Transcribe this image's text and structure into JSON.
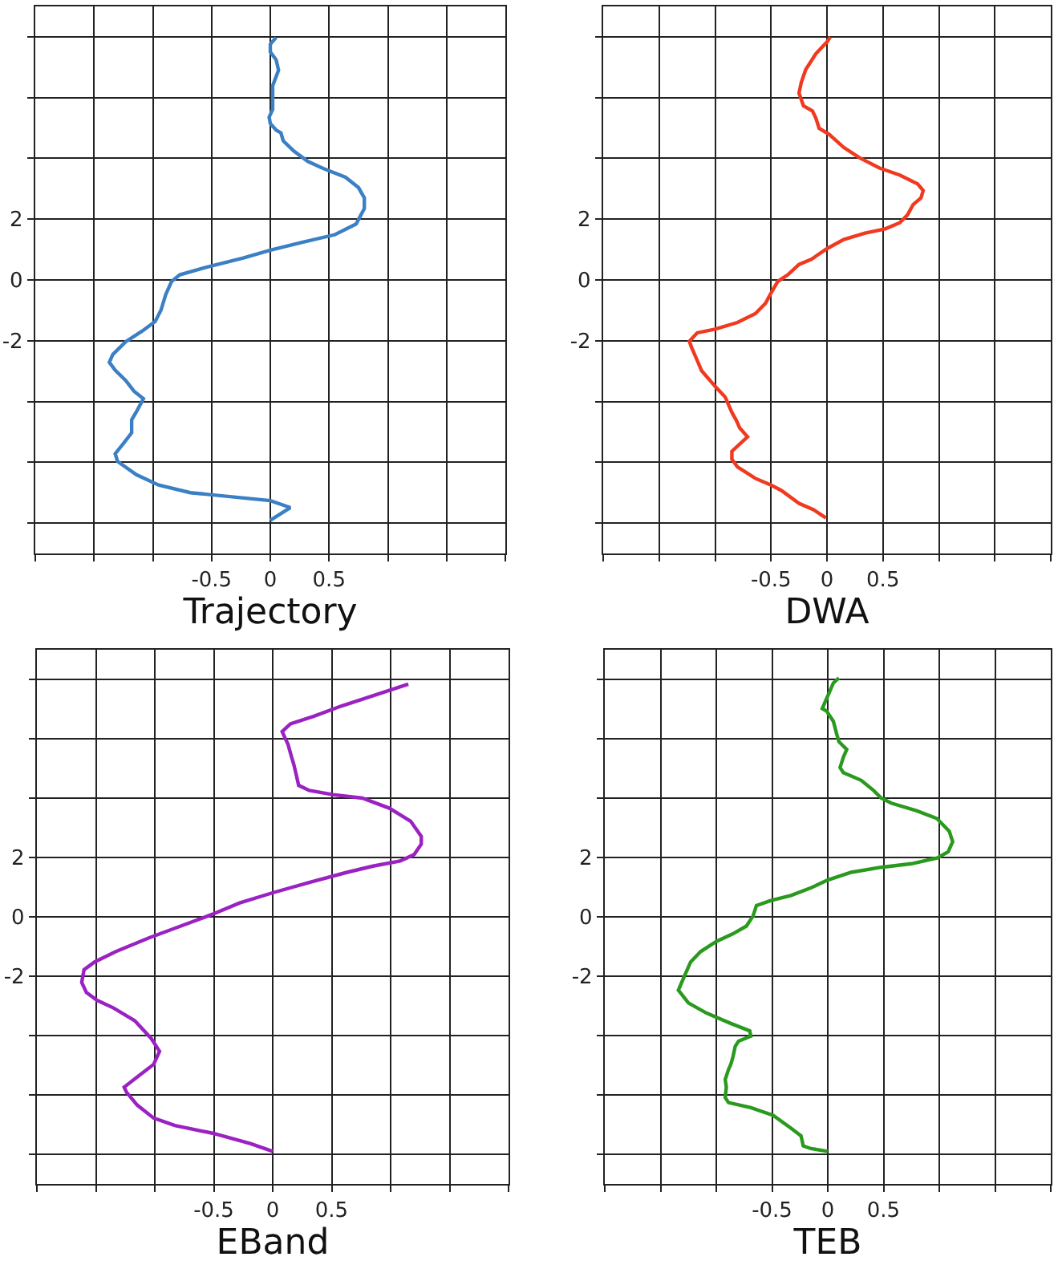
{
  "chart_data": [
    {
      "type": "line",
      "xlabel": "Trajectory",
      "xlim": [
        -2,
        2
      ],
      "ylim": [
        -9,
        9
      ],
      "grid": true,
      "marker": "none",
      "line_style": "solid",
      "xticks": [
        {
          "value": -2,
          "label": null
        },
        {
          "value": -1.5,
          "label": null
        },
        {
          "value": -1,
          "label": null
        },
        -0.5,
        0,
        0.5,
        {
          "value": 1,
          "label": null
        },
        {
          "value": 1.5,
          "label": null
        },
        {
          "value": 2,
          "label": null
        }
      ],
      "yticks": [
        {
          "value": -8,
          "label": null
        },
        {
          "value": -6,
          "label": null
        },
        {
          "value": -4,
          "label": null
        },
        -2,
        0,
        2,
        {
          "value": 4,
          "label": null
        },
        {
          "value": 6,
          "label": null
        },
        {
          "value": 8,
          "label": null
        }
      ],
      "series": [
        {
          "color": "#3b80c4",
          "x": [
            0,
            0.17,
            0,
            -0.68,
            -0.95,
            -1.14,
            -1.3,
            -1.32,
            -1.25,
            -1.18,
            -1.18,
            -1.14,
            -1.08,
            -1.16,
            -1.23,
            -1.32,
            -1.37,
            -1.34,
            -1.23,
            -1.09,
            -0.98,
            -0.93,
            -0.89,
            -0.84,
            -0.77,
            -0.55,
            -0.23,
            0,
            0.27,
            0.55,
            0.73,
            0.8,
            0.8,
            0.75,
            0.64,
            0.45,
            0.32,
            0.2,
            0.11,
            0.09,
            0.05,
            0,
            -0.01,
            0.02,
            0.02,
            0.02,
            0.07,
            0.05,
            0,
            0,
            0.05
          ],
          "values": [
            -7.91,
            -7.49,
            -7.26,
            -7.0,
            -6.75,
            -6.41,
            -5.97,
            -5.72,
            -5.38,
            -5.03,
            -4.6,
            -4.34,
            -3.91,
            -3.66,
            -3.31,
            -2.97,
            -2.71,
            -2.45,
            -2.03,
            -1.68,
            -1.37,
            -0.99,
            -0.48,
            -0.05,
            0.17,
            0.41,
            0.72,
            0.98,
            1.24,
            1.49,
            1.84,
            2.35,
            2.7,
            3.04,
            3.38,
            3.67,
            3.9,
            4.24,
            4.58,
            4.84,
            4.93,
            5.15,
            5.36,
            5.61,
            5.96,
            6.39,
            6.9,
            7.24,
            7.5,
            7.76,
            7.98
          ]
        }
      ]
    },
    {
      "type": "line",
      "xlabel": "DWA",
      "xlim": [
        -2,
        2
      ],
      "ylim": [
        -9,
        9
      ],
      "grid": true,
      "marker": "none",
      "line_style": "solid",
      "xticks": [
        {
          "value": -2,
          "label": null
        },
        {
          "value": -1.5,
          "label": null
        },
        {
          "value": -1,
          "label": null
        },
        -0.5,
        0,
        0.5,
        {
          "value": 1,
          "label": null
        },
        {
          "value": 1.5,
          "label": null
        },
        {
          "value": 2,
          "label": null
        }
      ],
      "yticks": [
        {
          "value": -8,
          "label": null
        },
        {
          "value": -6,
          "label": null
        },
        {
          "value": -4,
          "label": null
        },
        -2,
        0,
        2,
        {
          "value": 4,
          "label": null
        },
        {
          "value": 6,
          "label": null
        },
        {
          "value": 8,
          "label": null
        }
      ],
      "series": [
        {
          "color": "#f03a20",
          "x": [
            -0.01,
            -0.12,
            -0.25,
            -0.41,
            -0.5,
            -0.64,
            -0.8,
            -0.85,
            -0.85,
            -0.71,
            -0.78,
            -0.81,
            -0.85,
            -0.91,
            -1.0,
            -1.12,
            -1.17,
            -1.21,
            -1.23,
            -1.16,
            -1.0,
            -0.8,
            -0.64,
            -0.55,
            -0.5,
            -0.44,
            -0.35,
            -0.25,
            -0.14,
            0.0,
            0.15,
            0.34,
            0.52,
            0.65,
            0.72,
            0.77,
            0.84,
            0.86,
            0.81,
            0.65,
            0.47,
            0.29,
            0.15,
            0.02,
            -0.07,
            -0.1,
            -0.13,
            -0.21,
            -0.25,
            -0.23,
            -0.19,
            -0.1,
            0,
            0.03
          ],
          "values": [
            -7.83,
            -7.56,
            -7.35,
            -6.92,
            -6.75,
            -6.53,
            -6.15,
            -5.9,
            -5.64,
            -5.16,
            -4.87,
            -4.62,
            -4.36,
            -3.85,
            -3.5,
            -2.99,
            -2.56,
            -2.22,
            -2.02,
            -1.74,
            -1.62,
            -1.4,
            -1.11,
            -0.77,
            -0.43,
            -0.05,
            0.17,
            0.51,
            0.68,
            1.03,
            1.33,
            1.54,
            1.68,
            1.88,
            2.14,
            2.48,
            2.7,
            2.94,
            3.16,
            3.45,
            3.68,
            4.02,
            4.36,
            4.79,
            4.99,
            5.33,
            5.56,
            5.73,
            6.15,
            6.5,
            6.92,
            7.44,
            7.83,
            8.0
          ]
        }
      ]
    },
    {
      "type": "line",
      "xlabel": "EBand",
      "xlim": [
        -2,
        2
      ],
      "ylim": [
        -9,
        9
      ],
      "grid": true,
      "marker": "none",
      "line_style": "solid",
      "xticks": [
        {
          "value": -2,
          "label": null
        },
        {
          "value": -1.5,
          "label": null
        },
        {
          "value": -1,
          "label": null
        },
        -0.5,
        0,
        0.5,
        {
          "value": 1,
          "label": null
        },
        {
          "value": 1.5,
          "label": null
        },
        {
          "value": 2,
          "label": null
        }
      ],
      "yticks": [
        {
          "value": -8,
          "label": null
        },
        {
          "value": -6,
          "label": null
        },
        {
          "value": -4,
          "label": null
        },
        -2,
        0,
        2,
        {
          "value": 4,
          "label": null
        },
        {
          "value": 6,
          "label": null
        },
        {
          "value": 8,
          "label": null
        }
      ],
      "series": [
        {
          "color": "#9b22c2",
          "x": [
            0,
            -0.19,
            -0.51,
            -0.83,
            -1.01,
            -1.15,
            -1.24,
            -1.26,
            -1.15,
            -1.01,
            -0.96,
            -1.03,
            -1.17,
            -1.35,
            -1.49,
            -1.58,
            -1.62,
            -1.6,
            -1.51,
            -1.33,
            -1.05,
            -0.78,
            -0.51,
            -0.28,
            0,
            0.31,
            0.63,
            0.85,
            1.08,
            1.2,
            1.26,
            1.26,
            1.17,
            0.99,
            0.76,
            0.51,
            0.31,
            0.22,
            0.2,
            0.18,
            0.16,
            0.13,
            0.08,
            0.15,
            0.35,
            0.58,
            0.85,
            1.15
          ],
          "values": [
            -7.9,
            -7.64,
            -7.29,
            -7.03,
            -6.78,
            -6.34,
            -5.91,
            -5.74,
            -5.4,
            -4.97,
            -4.53,
            -4.1,
            -3.5,
            -3.07,
            -2.81,
            -2.55,
            -2.21,
            -1.78,
            -1.52,
            -1.17,
            -0.71,
            -0.31,
            0.09,
            0.47,
            0.81,
            1.16,
            1.5,
            1.71,
            1.88,
            2.1,
            2.45,
            2.71,
            3.22,
            3.66,
            4.0,
            4.12,
            4.26,
            4.43,
            4.78,
            5.12,
            5.38,
            5.81,
            6.24,
            6.5,
            6.76,
            7.1,
            7.45,
            7.84
          ]
        }
      ]
    },
    {
      "type": "line",
      "xlabel": "TEB",
      "xlim": [
        -2,
        2
      ],
      "ylim": [
        -9,
        9
      ],
      "grid": true,
      "marker": "none",
      "line_style": "solid",
      "xticks": [
        {
          "value": -2,
          "label": null
        },
        {
          "value": -1.5,
          "label": null
        },
        {
          "value": -1,
          "label": null
        },
        -0.5,
        0,
        0.5,
        {
          "value": 1,
          "label": null
        },
        {
          "value": 1.5,
          "label": null
        },
        {
          "value": 2,
          "label": null
        }
      ],
      "yticks": [
        {
          "value": -8,
          "label": null
        },
        {
          "value": -6,
          "label": null
        },
        {
          "value": -4,
          "label": null
        },
        -2,
        0,
        2,
        {
          "value": 4,
          "label": null
        },
        {
          "value": 6,
          "label": null
        },
        {
          "value": 8,
          "label": null
        }
      ],
      "series": [
        {
          "color": "#2a9a1e",
          "x": [
            0,
            -0.15,
            -0.22,
            -0.24,
            -0.33,
            -0.49,
            -0.69,
            -0.89,
            -0.92,
            -0.91,
            -0.92,
            -0.89,
            -0.87,
            -0.85,
            -0.83,
            -0.8,
            -0.69,
            -0.7,
            -0.87,
            -1.09,
            -1.25,
            -1.34,
            -1.3,
            -1.23,
            -1.14,
            -1.0,
            -0.85,
            -0.73,
            -0.67,
            -0.64,
            -0.51,
            -0.33,
            -0.15,
            0,
            0.21,
            0.48,
            0.75,
            0.98,
            1.08,
            1.12,
            1.09,
            0.98,
            0.8,
            0.57,
            0.48,
            0.41,
            0.3,
            0.14,
            0.11,
            0.14,
            0.17,
            0.1,
            0.08,
            0.05,
            -0.01,
            -0.05,
            0.01,
            0.05,
            0.1
          ],
          "values": [
            -7.9,
            -7.81,
            -7.72,
            -7.38,
            -7.12,
            -6.69,
            -6.43,
            -6.26,
            -6.09,
            -5.74,
            -5.48,
            -5.14,
            -4.97,
            -4.71,
            -4.36,
            -4.19,
            -4.02,
            -3.84,
            -3.59,
            -3.24,
            -2.9,
            -2.47,
            -2.12,
            -1.52,
            -1.17,
            -0.83,
            -0.57,
            -0.31,
            0.03,
            0.38,
            0.55,
            0.72,
            0.98,
            1.24,
            1.5,
            1.67,
            1.79,
            1.98,
            2.19,
            2.53,
            2.88,
            3.31,
            3.57,
            3.83,
            4.0,
            4.26,
            4.6,
            4.86,
            5.03,
            5.38,
            5.64,
            5.9,
            6.16,
            6.59,
            6.93,
            7.02,
            7.53,
            7.88,
            8.05
          ]
        }
      ]
    }
  ]
}
